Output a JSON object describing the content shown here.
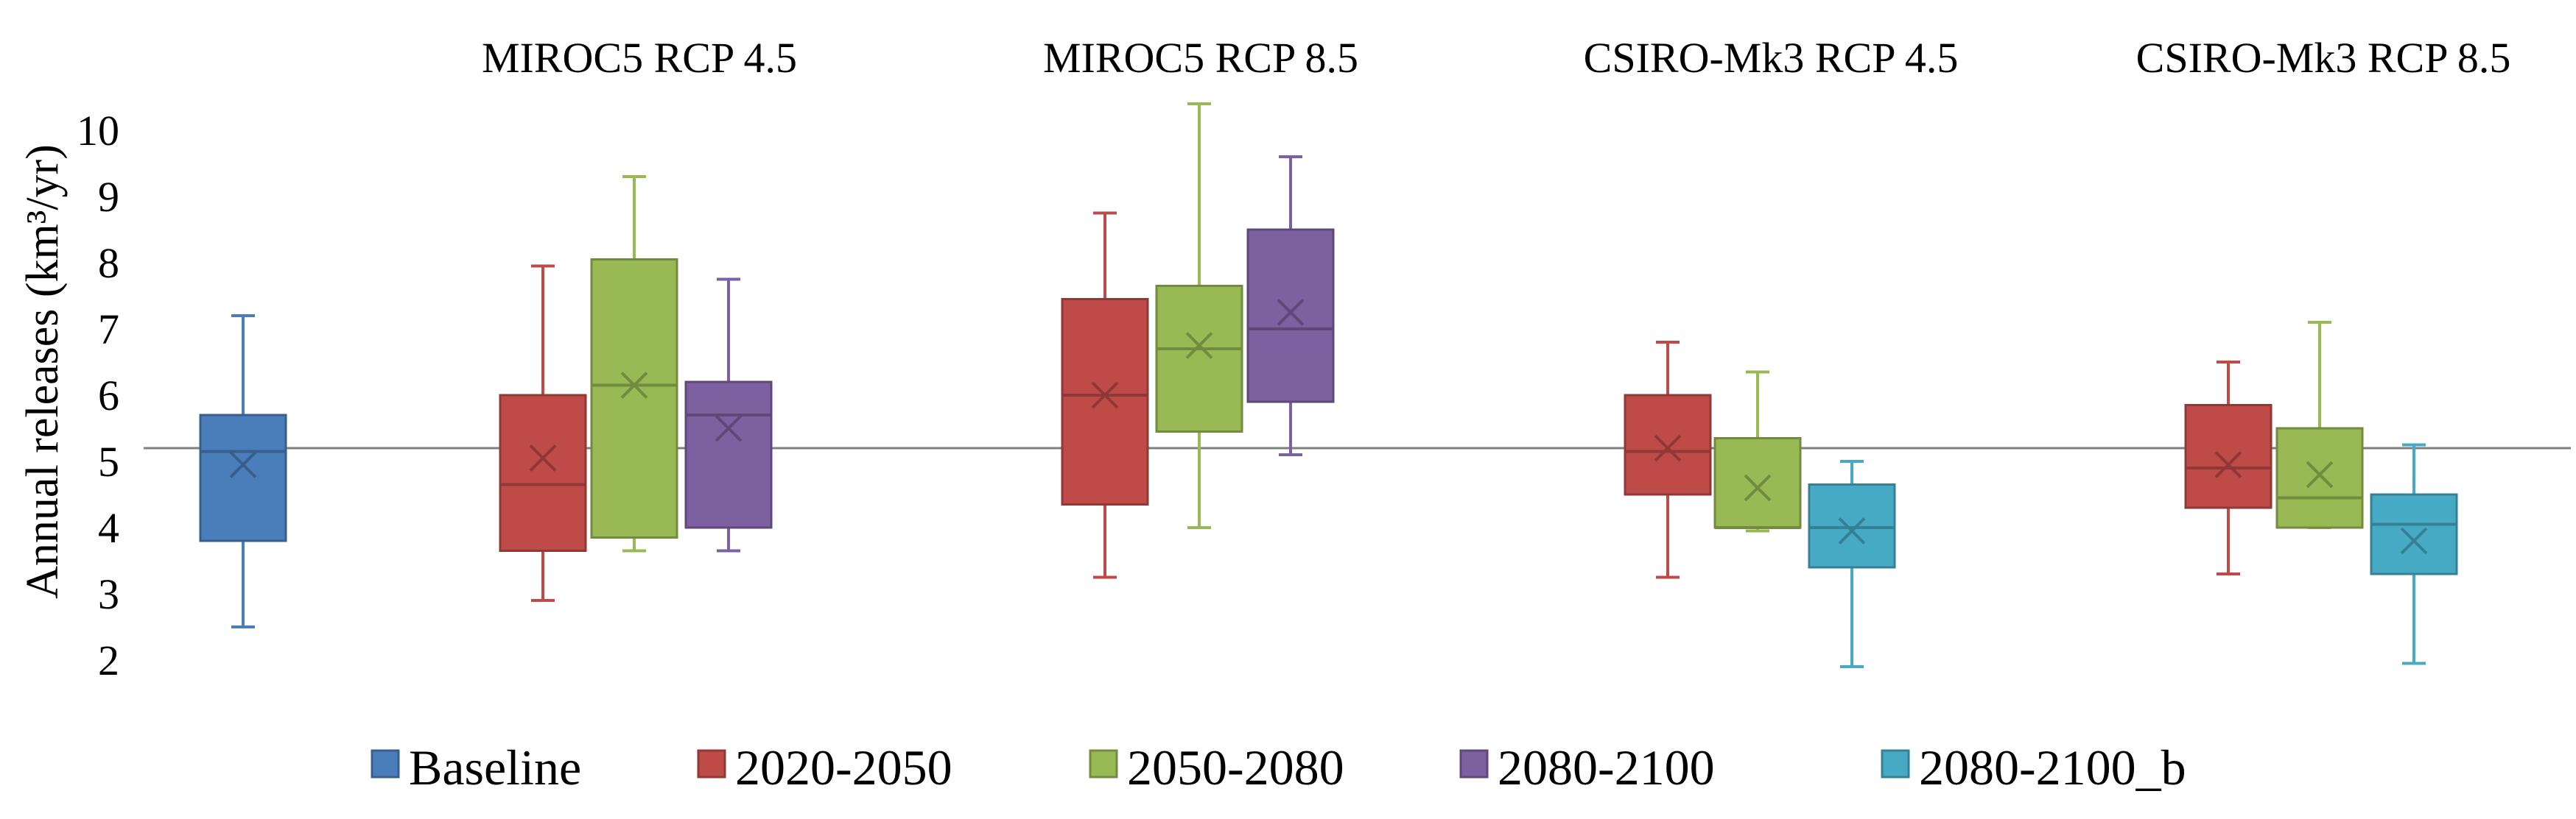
{
  "chart_data": {
    "type": "boxplot",
    "title": "",
    "ylabel": "Annual releases (km³/yr)",
    "ylim": [
      1.5,
      10.5
    ],
    "yticks": [
      "2",
      "3",
      "4",
      "5",
      "6",
      "7",
      "8",
      "9",
      "10"
    ],
    "reference_line": 5.2,
    "groups": [
      "",
      "MIROC5 RCP 4.5",
      "MIROC5 RCP 8.5",
      "CSIRO-Mk3 RCP 4.5",
      "CSIRO-Mk3 RCP 8.5"
    ],
    "legend": [
      {
        "name": "Baseline",
        "color": "#4a7ebb"
      },
      {
        "name": "2020-2050",
        "color": "#be4b48"
      },
      {
        "name": "2050-2080",
        "color": "#98b954"
      },
      {
        "name": "2080-2100",
        "color": "#7d60a0"
      },
      {
        "name": "2080-2100_b",
        "color": "#46aac5"
      }
    ],
    "boxes": [
      {
        "group": 0,
        "series": 0,
        "min": 2.5,
        "q1": 3.8,
        "median": 5.15,
        "q3": 5.7,
        "max": 7.2,
        "mean": 4.95
      },
      {
        "group": 1,
        "series": 1,
        "min": 2.9,
        "q1": 3.65,
        "median": 4.65,
        "q3": 6.0,
        "max": 7.95,
        "mean": 5.05
      },
      {
        "group": 1,
        "series": 2,
        "min": 3.65,
        "q1": 3.85,
        "median": 6.15,
        "q3": 8.05,
        "max": 9.3,
        "mean": 6.15
      },
      {
        "group": 1,
        "series": 3,
        "min": 3.65,
        "q1": 4.0,
        "median": 5.7,
        "q3": 6.2,
        "max": 7.75,
        "mean": 5.5
      },
      {
        "group": 2,
        "series": 1,
        "min": 3.25,
        "q1": 4.35,
        "median": 6.0,
        "q3": 7.45,
        "max": 8.75,
        "mean": 6.0
      },
      {
        "group": 2,
        "series": 2,
        "min": 4.0,
        "q1": 5.45,
        "median": 6.7,
        "q3": 7.65,
        "max": 10.4,
        "mean": 6.75
      },
      {
        "group": 2,
        "series": 3,
        "min": 5.1,
        "q1": 5.9,
        "median": 7.0,
        "q3": 8.5,
        "max": 9.6,
        "mean": 7.25
      },
      {
        "group": 3,
        "series": 1,
        "min": 3.25,
        "q1": 4.5,
        "median": 5.15,
        "q3": 6.0,
        "max": 6.8,
        "mean": 5.2
      },
      {
        "group": 3,
        "series": 2,
        "min": 3.95,
        "q1": 4.0,
        "median": 4.0,
        "q3": 5.35,
        "max": 6.35,
        "mean": 4.6
      },
      {
        "group": 3,
        "series": 4,
        "min": 1.9,
        "q1": 3.4,
        "median": 4.0,
        "q3": 4.65,
        "max": 5.0,
        "mean": 3.95
      },
      {
        "group": 4,
        "series": 1,
        "min": 3.3,
        "q1": 4.3,
        "median": 4.9,
        "q3": 5.85,
        "max": 6.5,
        "mean": 4.95
      },
      {
        "group": 4,
        "series": 2,
        "min": 4.0,
        "q1": 4.0,
        "median": 4.45,
        "q3": 5.5,
        "max": 7.1,
        "mean": 4.8
      },
      {
        "group": 4,
        "series": 4,
        "min": 1.95,
        "q1": 3.3,
        "median": 4.05,
        "q3": 4.5,
        "max": 5.25,
        "mean": 3.8
      }
    ]
  }
}
